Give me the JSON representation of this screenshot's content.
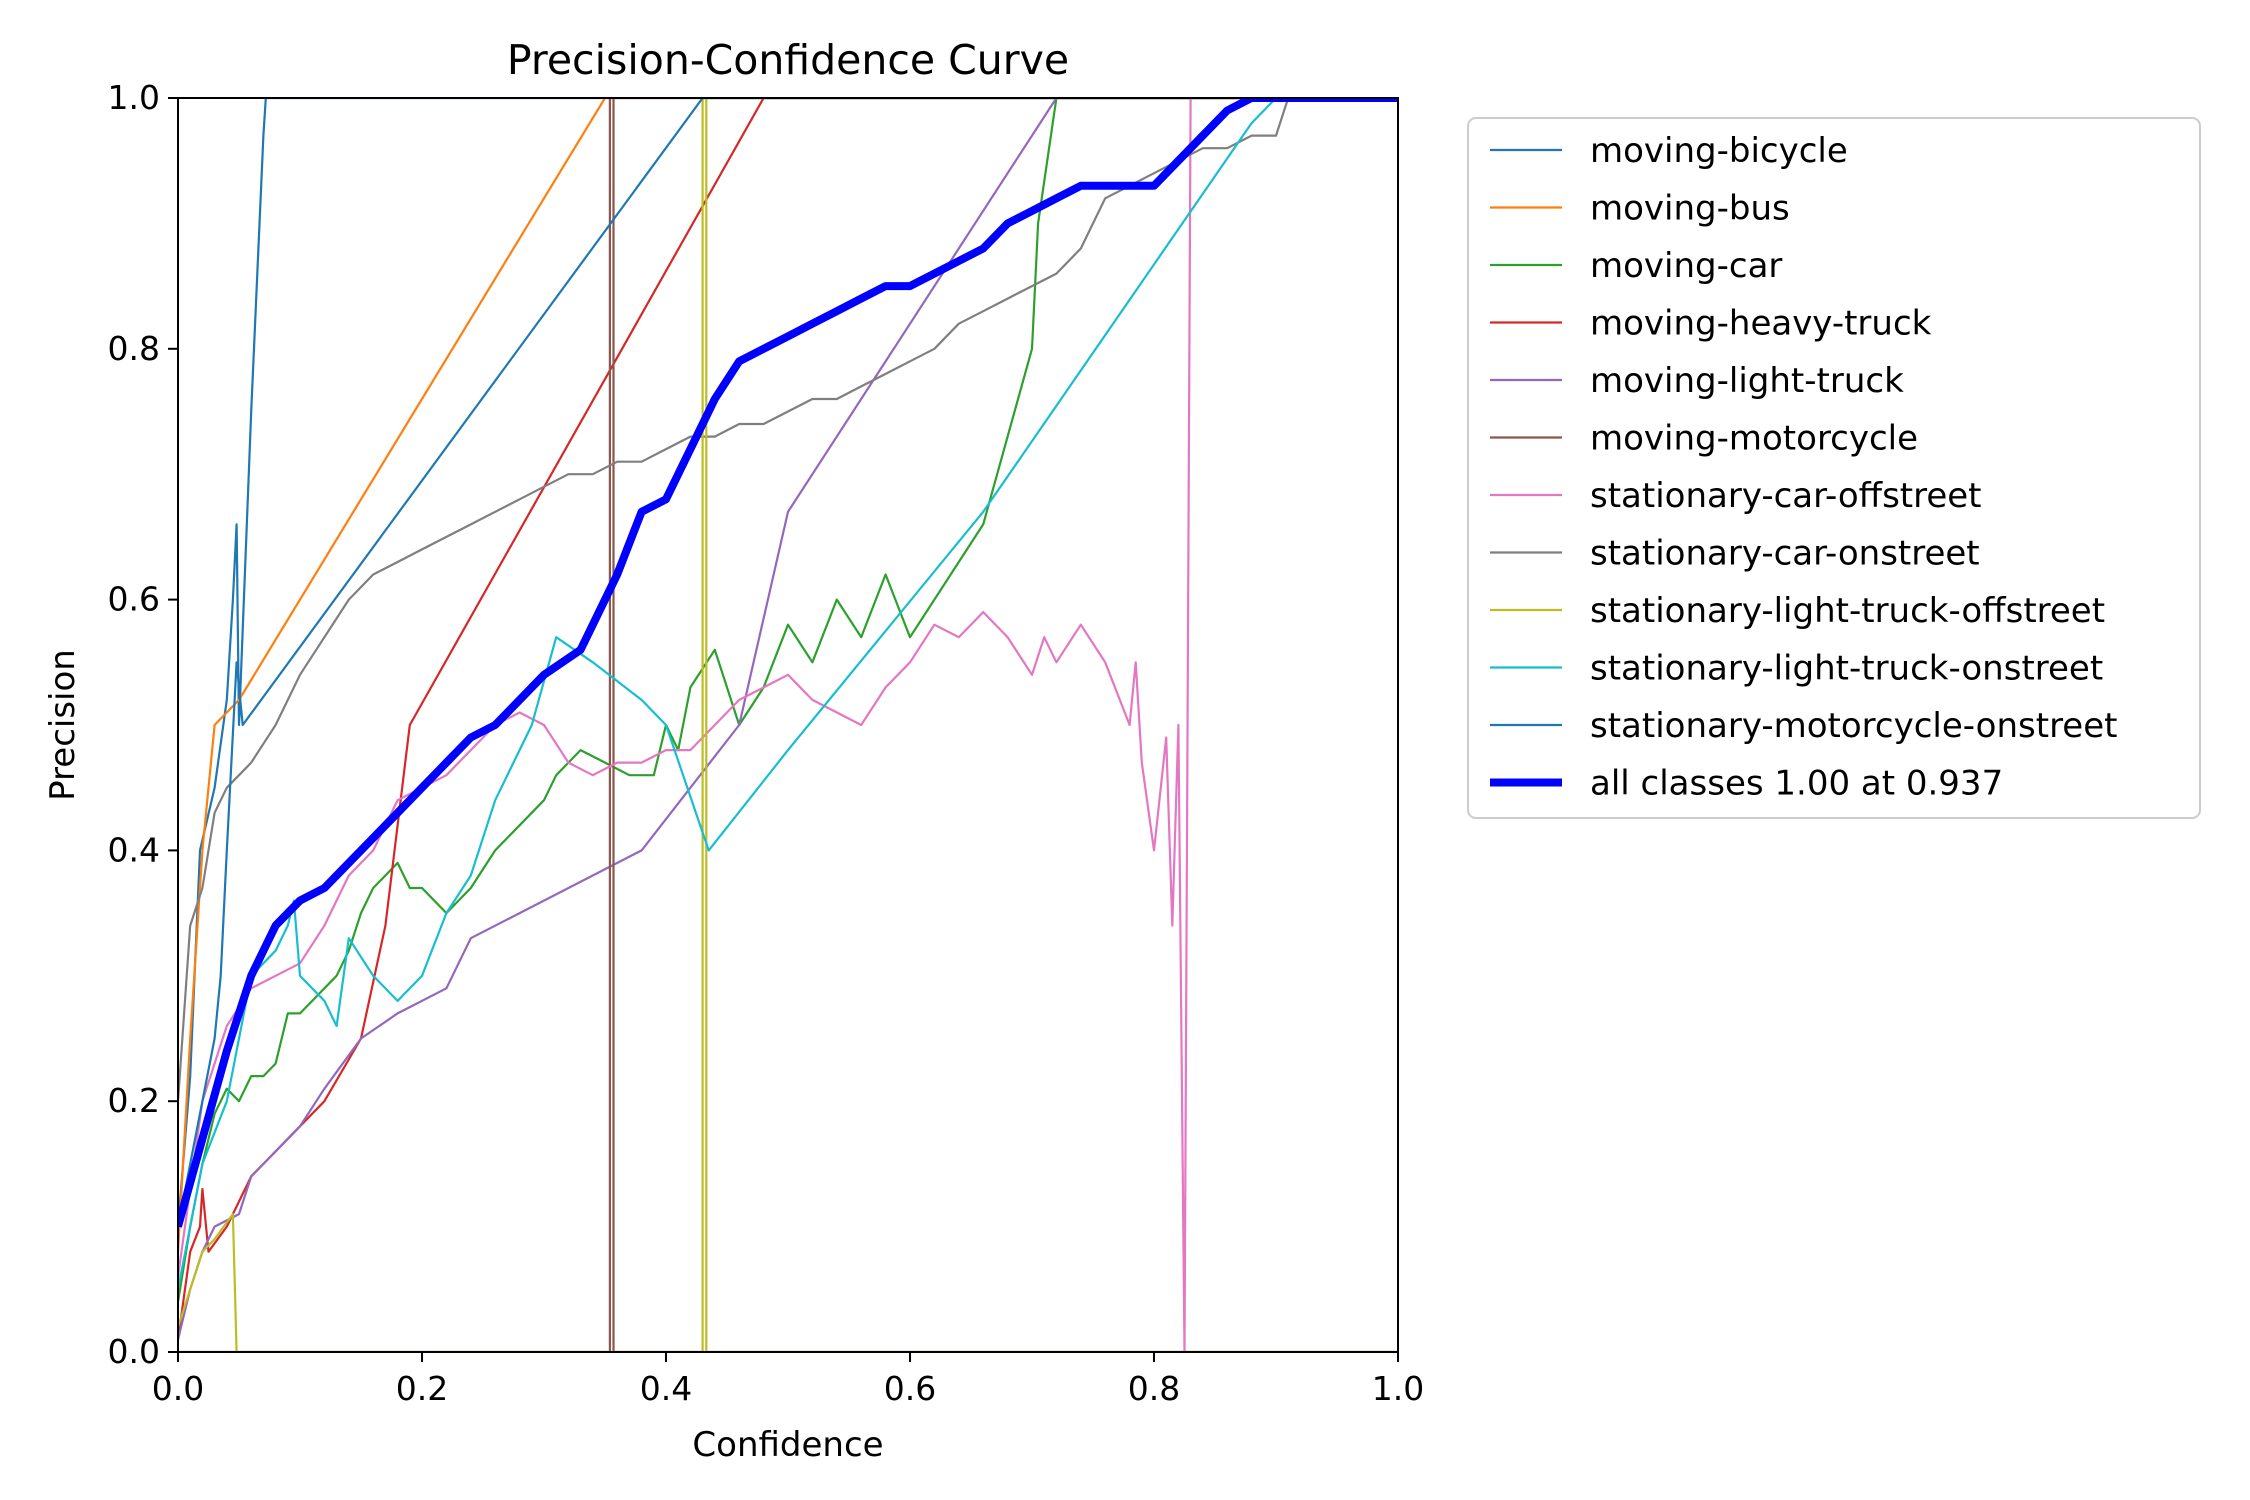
{
  "chart_data": {
    "type": "line",
    "title": "Precision-Confidence Curve",
    "xlabel": "Confidence",
    "ylabel": "Precision",
    "xlim": [
      0,
      1
    ],
    "ylim": [
      0,
      1
    ],
    "xticks": [
      "0.0",
      "0.2",
      "0.4",
      "0.6",
      "0.8",
      "1.0"
    ],
    "yticks": [
      "0.0",
      "0.2",
      "0.4",
      "0.6",
      "0.8",
      "1.0"
    ],
    "grid": false,
    "legend_position": "outside-right-top",
    "series": [
      {
        "name": "moving-bicycle",
        "color": "#1f77b4",
        "x": [
          0,
          0.01,
          0.018,
          0.03,
          0.04,
          0.045,
          0.048,
          0.05,
          0.06,
          0.07,
          0.072,
          1.0
        ],
        "y": [
          0.1,
          0.22,
          0.4,
          0.45,
          0.52,
          0.6,
          0.66,
          0.5,
          0.75,
          0.97,
          1.0,
          1.0
        ]
      },
      {
        "name": "moving-bus",
        "color": "#ff7f0e",
        "x": [
          0,
          0.01,
          0.02,
          0.03,
          0.05,
          0.35,
          1.0
        ],
        "y": [
          0.08,
          0.25,
          0.4,
          0.5,
          0.52,
          1.0,
          1.0
        ]
      },
      {
        "name": "moving-car",
        "color": "#2ca02c",
        "x": [
          0,
          0.01,
          0.02,
          0.03,
          0.04,
          0.05,
          0.06,
          0.07,
          0.08,
          0.09,
          0.1,
          0.11,
          0.12,
          0.13,
          0.14,
          0.15,
          0.16,
          0.17,
          0.18,
          0.19,
          0.2,
          0.22,
          0.24,
          0.26,
          0.28,
          0.3,
          0.31,
          0.33,
          0.35,
          0.37,
          0.39,
          0.4,
          0.41,
          0.42,
          0.44,
          0.46,
          0.48,
          0.5,
          0.52,
          0.54,
          0.56,
          0.58,
          0.6,
          0.66,
          0.7,
          0.705,
          0.72,
          1.0
        ],
        "y": [
          0.04,
          0.1,
          0.15,
          0.19,
          0.21,
          0.2,
          0.22,
          0.22,
          0.23,
          0.27,
          0.27,
          0.28,
          0.29,
          0.3,
          0.32,
          0.35,
          0.37,
          0.38,
          0.39,
          0.37,
          0.37,
          0.35,
          0.37,
          0.4,
          0.42,
          0.44,
          0.46,
          0.48,
          0.47,
          0.46,
          0.46,
          0.5,
          0.48,
          0.53,
          0.56,
          0.5,
          0.53,
          0.58,
          0.55,
          0.6,
          0.57,
          0.62,
          0.57,
          0.66,
          0.8,
          0.9,
          1.0,
          1.0
        ]
      },
      {
        "name": "moving-heavy-truck",
        "color": "#d62728",
        "x": [
          0,
          0.01,
          0.018,
          0.02,
          0.025,
          0.04,
          0.05,
          0.06,
          0.08,
          0.12,
          0.15,
          0.17,
          0.19,
          0.48,
          1.0
        ],
        "y": [
          0.01,
          0.08,
          0.1,
          0.13,
          0.08,
          0.1,
          0.12,
          0.14,
          0.16,
          0.2,
          0.25,
          0.34,
          0.5,
          1.0,
          1.0
        ]
      },
      {
        "name": "moving-light-truck",
        "color": "#9467bd",
        "x": [
          0,
          0.01,
          0.02,
          0.03,
          0.05,
          0.06,
          0.08,
          0.1,
          0.12,
          0.15,
          0.18,
          0.22,
          0.24,
          0.38,
          0.46,
          0.5,
          0.72,
          1.0
        ],
        "y": [
          0.01,
          0.05,
          0.08,
          0.1,
          0.11,
          0.14,
          0.16,
          0.18,
          0.21,
          0.25,
          0.27,
          0.29,
          0.33,
          0.4,
          0.5,
          0.67,
          1.0,
          1.0
        ]
      },
      {
        "name": "moving-motorcycle",
        "color": "#8c564b",
        "x": [
          0,
          0.354,
          0.354,
          0.357,
          0.357,
          1.0
        ],
        "y": [
          0,
          0,
          1.0,
          1.0,
          0,
          0
        ]
      },
      {
        "name": "stationary-car-offstreet",
        "color": "#e377c2",
        "x": [
          0,
          0.02,
          0.04,
          0.06,
          0.08,
          0.1,
          0.12,
          0.14,
          0.16,
          0.18,
          0.2,
          0.22,
          0.24,
          0.26,
          0.28,
          0.3,
          0.32,
          0.34,
          0.36,
          0.38,
          0.4,
          0.42,
          0.44,
          0.46,
          0.48,
          0.5,
          0.52,
          0.56,
          0.58,
          0.6,
          0.62,
          0.64,
          0.66,
          0.68,
          0.7,
          0.71,
          0.72,
          0.74,
          0.76,
          0.78,
          0.785,
          0.79,
          0.8,
          0.81,
          0.815,
          0.82,
          0.825,
          0.83,
          0.832,
          0.835,
          1.0
        ],
        "y": [
          0.06,
          0.2,
          0.26,
          0.29,
          0.3,
          0.31,
          0.34,
          0.38,
          0.4,
          0.44,
          0.45,
          0.46,
          0.48,
          0.5,
          0.51,
          0.5,
          0.47,
          0.46,
          0.47,
          0.47,
          0.48,
          0.48,
          0.5,
          0.52,
          0.53,
          0.54,
          0.52,
          0.5,
          0.53,
          0.55,
          0.58,
          0.57,
          0.59,
          0.57,
          0.54,
          0.57,
          0.55,
          0.58,
          0.55,
          0.5,
          0.55,
          0.47,
          0.4,
          0.49,
          0.34,
          0.5,
          0.0,
          1.0,
          1.0,
          1.0,
          1.0
        ]
      },
      {
        "name": "stationary-car-onstreet",
        "color": "#7f7f7f",
        "x": [
          0,
          0.01,
          0.02,
          0.03,
          0.04,
          0.05,
          0.06,
          0.08,
          0.1,
          0.12,
          0.14,
          0.16,
          0.18,
          0.2,
          0.22,
          0.24,
          0.26,
          0.28,
          0.3,
          0.32,
          0.34,
          0.36,
          0.38,
          0.4,
          0.42,
          0.44,
          0.46,
          0.48,
          0.5,
          0.52,
          0.54,
          0.56,
          0.58,
          0.6,
          0.62,
          0.64,
          0.66,
          0.68,
          0.7,
          0.72,
          0.74,
          0.76,
          0.78,
          0.8,
          0.82,
          0.84,
          0.86,
          0.88,
          0.9,
          0.91,
          1.0
        ],
        "y": [
          0.2,
          0.34,
          0.37,
          0.43,
          0.45,
          0.46,
          0.47,
          0.5,
          0.54,
          0.57,
          0.6,
          0.62,
          0.63,
          0.64,
          0.65,
          0.66,
          0.67,
          0.68,
          0.69,
          0.7,
          0.7,
          0.71,
          0.71,
          0.72,
          0.73,
          0.73,
          0.74,
          0.74,
          0.75,
          0.76,
          0.76,
          0.77,
          0.78,
          0.79,
          0.8,
          0.82,
          0.83,
          0.84,
          0.85,
          0.86,
          0.88,
          0.92,
          0.93,
          0.94,
          0.95,
          0.96,
          0.96,
          0.97,
          0.97,
          1.0,
          1.0
        ]
      },
      {
        "name": "stationary-light-truck-offstreet",
        "color": "#bcbd22",
        "x": [
          0,
          0.01,
          0.02,
          0.03,
          0.045,
          0.048,
          0.43,
          0.43,
          0.433,
          0.433,
          1.0
        ],
        "y": [
          0.02,
          0.05,
          0.08,
          0.09,
          0.11,
          0,
          0,
          1.0,
          1.0,
          0,
          0
        ]
      },
      {
        "name": "stationary-light-truck-onstreet",
        "color": "#17becf",
        "x": [
          0,
          0.02,
          0.04,
          0.05,
          0.06,
          0.08,
          0.09,
          0.095,
          0.1,
          0.12,
          0.13,
          0.14,
          0.16,
          0.18,
          0.2,
          0.22,
          0.24,
          0.26,
          0.29,
          0.31,
          0.34,
          0.38,
          0.4,
          0.435,
          0.5,
          0.66,
          0.88,
          0.9,
          1.0
        ],
        "y": [
          0.05,
          0.15,
          0.2,
          0.25,
          0.3,
          0.32,
          0.34,
          0.36,
          0.3,
          0.28,
          0.26,
          0.33,
          0.3,
          0.28,
          0.3,
          0.35,
          0.38,
          0.44,
          0.5,
          0.57,
          0.55,
          0.52,
          0.5,
          0.4,
          0.48,
          0.67,
          0.98,
          1.0,
          1.0
        ]
      },
      {
        "name": "stationary-motorcycle-onstreet",
        "color": "#1f77b4",
        "x": [
          0,
          0.01,
          0.02,
          0.03,
          0.035,
          0.04,
          0.048,
          0.053,
          0.43,
          1.0
        ],
        "y": [
          0.1,
          0.15,
          0.2,
          0.25,
          0.3,
          0.4,
          0.55,
          0.5,
          1.0,
          1.0
        ]
      },
      {
        "name": "all classes 1.00 at 0.937",
        "color": "#0000ff",
        "thick": true,
        "x": [
          0,
          0.02,
          0.04,
          0.06,
          0.08,
          0.1,
          0.12,
          0.14,
          0.16,
          0.18,
          0.2,
          0.22,
          0.24,
          0.26,
          0.28,
          0.3,
          0.33,
          0.36,
          0.38,
          0.4,
          0.42,
          0.44,
          0.46,
          0.48,
          0.5,
          0.52,
          0.54,
          0.56,
          0.58,
          0.6,
          0.62,
          0.64,
          0.66,
          0.68,
          0.7,
          0.72,
          0.74,
          0.76,
          0.78,
          0.8,
          0.82,
          0.84,
          0.86,
          0.88,
          0.9,
          0.937,
          1.0
        ],
        "y": [
          0.1,
          0.17,
          0.24,
          0.3,
          0.34,
          0.36,
          0.37,
          0.39,
          0.41,
          0.43,
          0.45,
          0.47,
          0.49,
          0.5,
          0.52,
          0.54,
          0.56,
          0.62,
          0.67,
          0.68,
          0.72,
          0.76,
          0.79,
          0.8,
          0.81,
          0.82,
          0.83,
          0.84,
          0.85,
          0.85,
          0.86,
          0.87,
          0.88,
          0.9,
          0.91,
          0.92,
          0.93,
          0.93,
          0.93,
          0.93,
          0.95,
          0.97,
          0.99,
          1.0,
          1.0,
          1.0,
          1.0
        ]
      }
    ]
  }
}
